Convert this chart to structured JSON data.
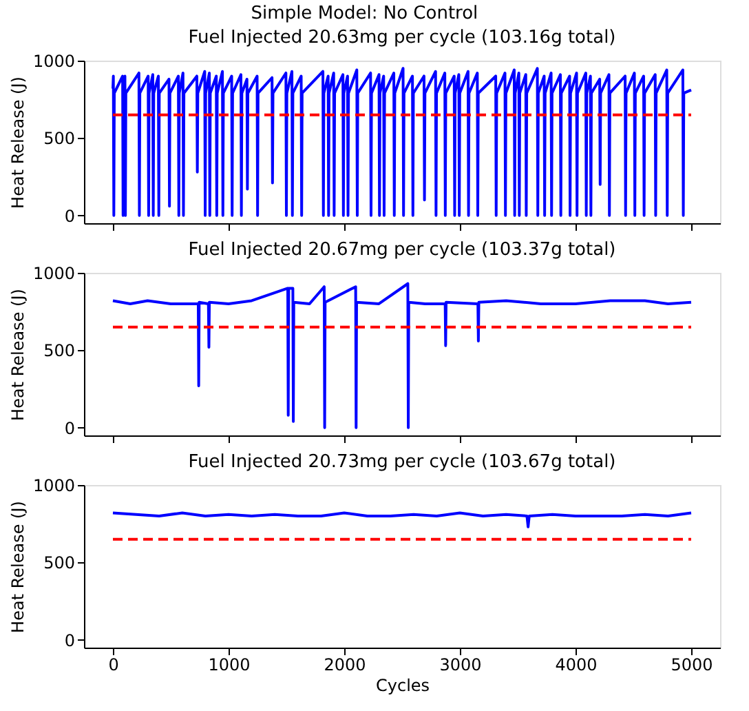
{
  "chart_data": [
    {
      "type": "line",
      "title": "Simple Model: No Control",
      "subtitle": "Fuel Injected 20.63mg per cycle (103.16g total)",
      "ylabel": "Heat Release (J)",
      "xlim": [
        -250,
        5250
      ],
      "xticks": [
        0,
        1000,
        2000,
        3000,
        4000,
        5000
      ],
      "ylim": [
        -50,
        1000
      ],
      "yticks": [
        0,
        500,
        1000
      ],
      "tick_labels": "y",
      "grid": false,
      "series": [
        {
          "color": "#0000ff",
          "line_style": "solid",
          "x": [
            0,
            4,
            8,
            12,
            84,
            88,
            92,
            104,
            108,
            112,
            225,
            229,
            233,
            305,
            309,
            313,
            345,
            349,
            353,
            393,
            397,
            401,
            485,
            489,
            493,
            566,
            570,
            574,
            606,
            610,
            614,
            726,
            730,
            734,
            794,
            798,
            802,
            834,
            838,
            842,
            894,
            898,
            902,
            947,
            951,
            955,
            1027,
            1031,
            1035,
            1107,
            1111,
            1115,
            1159,
            1163,
            1167,
            1247,
            1251,
            1255,
            1376,
            1380,
            1384,
            1496,
            1500,
            1504,
            1548,
            1552,
            1556,
            1628,
            1632,
            1636,
            1816,
            1820,
            1824,
            1861,
            1865,
            1869,
            1909,
            1913,
            1917,
            1989,
            1993,
            1997,
            2029,
            2033,
            2037,
            2109,
            2113,
            2117,
            2228,
            2232,
            2236,
            2301,
            2305,
            2309,
            2341,
            2345,
            2349,
            2429,
            2433,
            2437,
            2509,
            2513,
            2517,
            2590,
            2594,
            2598,
            2690,
            2694,
            2698,
            2790,
            2794,
            2798,
            2870,
            2874,
            2878,
            2951,
            2955,
            2959,
            2991,
            2995,
            2999,
            3071,
            3075,
            3079,
            3151,
            3155,
            3159,
            3310,
            3314,
            3318,
            3390,
            3394,
            3398,
            3470,
            3474,
            3478,
            3510,
            3514,
            3518,
            3570,
            3574,
            3578,
            3670,
            3674,
            3678,
            3729,
            3733,
            3737,
            3789,
            3793,
            3797,
            3869,
            3873,
            3877,
            3949,
            3953,
            3957,
            4009,
            4013,
            4017,
            4089,
            4093,
            4097,
            4129,
            4133,
            4137,
            4209,
            4213,
            4217,
            4289,
            4293,
            4297,
            4429,
            4433,
            4437,
            4509,
            4513,
            4517,
            4589,
            4593,
            4597,
            4689,
            4693,
            4697,
            4789,
            4793,
            4797,
            4928,
            4932,
            4936,
            5000
          ],
          "values": [
            820,
            900,
            0,
            790,
            900,
            0,
            790,
            900,
            0,
            790,
            920,
            0,
            790,
            900,
            0,
            790,
            910,
            0,
            790,
            900,
            0,
            790,
            880,
            60,
            790,
            900,
            0,
            790,
            920,
            0,
            790,
            900,
            280,
            790,
            930,
            0,
            790,
            920,
            0,
            790,
            900,
            0,
            790,
            930,
            0,
            790,
            900,
            0,
            790,
            910,
            0,
            790,
            880,
            170,
            790,
            900,
            0,
            790,
            890,
            210,
            790,
            920,
            0,
            790,
            930,
            0,
            790,
            900,
            0,
            790,
            930,
            0,
            790,
            900,
            0,
            790,
            920,
            0,
            790,
            910,
            0,
            790,
            900,
            0,
            790,
            940,
            0,
            790,
            920,
            0,
            790,
            910,
            0,
            790,
            900,
            0,
            790,
            920,
            0,
            790,
            950,
            0,
            790,
            900,
            0,
            790,
            900,
            100,
            790,
            930,
            0,
            790,
            920,
            0,
            790,
            900,
            0,
            790,
            910,
            0,
            790,
            930,
            0,
            790,
            920,
            0,
            790,
            900,
            0,
            790,
            920,
            0,
            790,
            940,
            0,
            790,
            920,
            0,
            790,
            910,
            0,
            790,
            950,
            0,
            790,
            900,
            0,
            790,
            920,
            0,
            790,
            910,
            0,
            790,
            900,
            0,
            790,
            920,
            0,
            790,
            920,
            0,
            790,
            900,
            0,
            790,
            880,
            200,
            790,
            910,
            0,
            790,
            900,
            0,
            790,
            920,
            0,
            790,
            900,
            0,
            790,
            910,
            0,
            790,
            940,
            0,
            790,
            940,
            0,
            790,
            810
          ]
        },
        {
          "color": "#ff0000",
          "line_style": "dashed",
          "x": [
            0,
            5000
          ],
          "values": [
            650,
            650
          ]
        }
      ]
    },
    {
      "type": "line",
      "title": "Fuel Injected 20.67mg per cycle (103.37g total)",
      "ylabel": "Heat Release (J)",
      "xlim": [
        -250,
        5250
      ],
      "xticks": [
        0,
        1000,
        2000,
        3000,
        4000,
        5000
      ],
      "ylim": [
        -50,
        1000
      ],
      "yticks": [
        0,
        500,
        1000
      ],
      "tick_labels": "y",
      "grid": false,
      "series": [
        {
          "color": "#0000ff",
          "line_style": "solid",
          "x": [
            0,
            150,
            300,
            500,
            738,
            742,
            746,
            826,
            830,
            834,
            1000,
            1200,
            1512,
            1516,
            1520,
            1556,
            1560,
            1564,
            1700,
            1827,
            1831,
            1835,
            2099,
            2103,
            2107,
            2300,
            2550,
            2554,
            2558,
            2700,
            2873,
            2877,
            2881,
            3156,
            3160,
            3164,
            3400,
            3700,
            4000,
            4300,
            4600,
            4800,
            5000
          ],
          "values": [
            820,
            800,
            820,
            800,
            800,
            270,
            810,
            800,
            520,
            810,
            800,
            820,
            900,
            80,
            900,
            900,
            40,
            810,
            800,
            910,
            0,
            810,
            910,
            0,
            810,
            800,
            930,
            0,
            810,
            800,
            800,
            530,
            810,
            800,
            560,
            810,
            820,
            800,
            800,
            820,
            820,
            800,
            810
          ]
        },
        {
          "color": "#ff0000",
          "line_style": "dashed",
          "x": [
            0,
            5000
          ],
          "values": [
            650,
            650
          ]
        }
      ]
    },
    {
      "type": "line",
      "title": "Fuel Injected 20.73mg per cycle (103.67g total)",
      "xlabel": "Cycles",
      "ylabel": "Heat Release (J)",
      "xlim": [
        -250,
        5250
      ],
      "xticks": [
        0,
        1000,
        2000,
        3000,
        4000,
        5000
      ],
      "ylim": [
        -50,
        1000
      ],
      "yticks": [
        0,
        500,
        1000
      ],
      "grid": false,
      "series": [
        {
          "color": "#0000ff",
          "line_style": "solid",
          "x": [
            0,
            200,
            400,
            600,
            800,
            1000,
            1200,
            1400,
            1600,
            1800,
            2000,
            2200,
            2400,
            2600,
            2800,
            3000,
            3200,
            3400,
            3580,
            3590,
            3600,
            3800,
            4000,
            4200,
            4400,
            4600,
            4800,
            5000
          ],
          "values": [
            820,
            810,
            800,
            820,
            800,
            810,
            800,
            810,
            800,
            800,
            820,
            800,
            800,
            810,
            800,
            820,
            800,
            810,
            800,
            730,
            800,
            810,
            800,
            800,
            800,
            810,
            800,
            820
          ]
        },
        {
          "color": "#ff0000",
          "line_style": "dashed",
          "x": [
            0,
            5000
          ],
          "values": [
            650,
            650
          ]
        }
      ]
    }
  ]
}
